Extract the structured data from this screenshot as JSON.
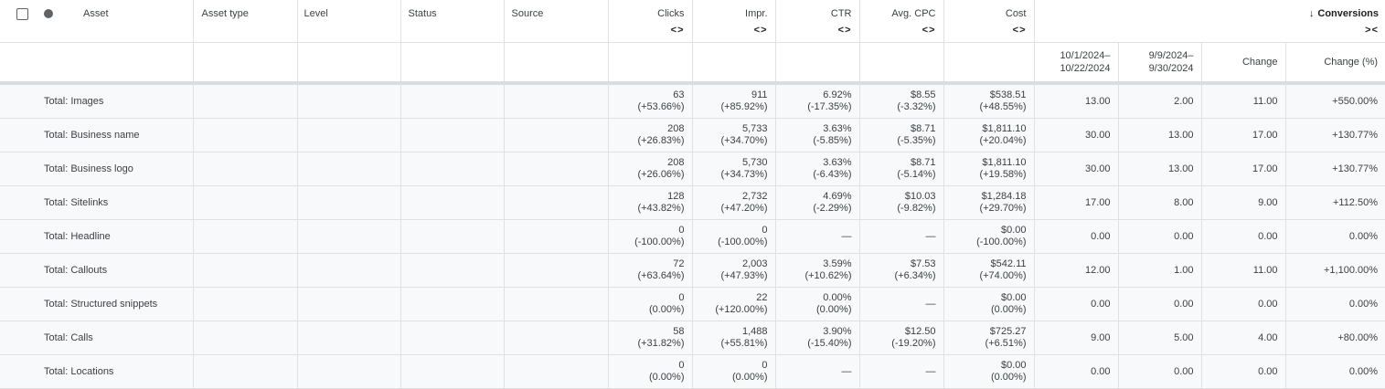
{
  "columns": {
    "asset": "Asset",
    "asset_type": "Asset type",
    "level": "Level",
    "status": "Status",
    "source": "Source",
    "clicks": "Clicks",
    "impr": "Impr.",
    "ctr": "CTR",
    "avg_cpc": "Avg. CPC",
    "cost": "Cost",
    "conversions": "Conversions",
    "conversions_arrow": "↓",
    "expand_icon": "<>",
    "collapse_icon": "><"
  },
  "subheaders": {
    "period1_a": "10/1/2024–",
    "period1_b": "10/22/2024",
    "period2_a": "9/9/2024–",
    "period2_b": "9/30/2024",
    "change": "Change",
    "change_pct": "Change (%)"
  },
  "rows": [
    {
      "asset": "Total: Images",
      "clicks": "63",
      "clicks_d": "(+53.66%)",
      "impr": "911",
      "impr_d": "(+85.92%)",
      "ctr": "6.92%",
      "ctr_d": "(-17.35%)",
      "cpc": "$8.55",
      "cpc_d": "(-3.32%)",
      "cost": "$538.51",
      "cost_d": "(+48.55%)",
      "p1": "13.00",
      "p2": "2.00",
      "chg": "11.00",
      "chgp": "+550.00%"
    },
    {
      "asset": "Total: Business name",
      "clicks": "208",
      "clicks_d": "(+26.83%)",
      "impr": "5,733",
      "impr_d": "(+34.70%)",
      "ctr": "3.63%",
      "ctr_d": "(-5.85%)",
      "cpc": "$8.71",
      "cpc_d": "(-5.35%)",
      "cost": "$1,811.10",
      "cost_d": "(+20.04%)",
      "p1": "30.00",
      "p2": "13.00",
      "chg": "17.00",
      "chgp": "+130.77%"
    },
    {
      "asset": "Total: Business logo",
      "clicks": "208",
      "clicks_d": "(+26.06%)",
      "impr": "5,730",
      "impr_d": "(+34.73%)",
      "ctr": "3.63%",
      "ctr_d": "(-6.43%)",
      "cpc": "$8.71",
      "cpc_d": "(-5.14%)",
      "cost": "$1,811.10",
      "cost_d": "(+19.58%)",
      "p1": "30.00",
      "p2": "13.00",
      "chg": "17.00",
      "chgp": "+130.77%"
    },
    {
      "asset": "Total: Sitelinks",
      "clicks": "128",
      "clicks_d": "(+43.82%)",
      "impr": "2,732",
      "impr_d": "(+47.20%)",
      "ctr": "4.69%",
      "ctr_d": "(-2.29%)",
      "cpc": "$10.03",
      "cpc_d": "(-9.82%)",
      "cost": "$1,284.18",
      "cost_d": "(+29.70%)",
      "p1": "17.00",
      "p2": "8.00",
      "chg": "9.00",
      "chgp": "+112.50%"
    },
    {
      "asset": "Total: Headline",
      "clicks": "0",
      "clicks_d": "(-100.00%)",
      "impr": "0",
      "impr_d": "(-100.00%)",
      "ctr": "—",
      "ctr_d": "",
      "cpc": "—",
      "cpc_d": "",
      "cost": "$0.00",
      "cost_d": "(-100.00%)",
      "p1": "0.00",
      "p2": "0.00",
      "chg": "0.00",
      "chgp": "0.00%"
    },
    {
      "asset": "Total: Callouts",
      "clicks": "72",
      "clicks_d": "(+63.64%)",
      "impr": "2,003",
      "impr_d": "(+47.93%)",
      "ctr": "3.59%",
      "ctr_d": "(+10.62%)",
      "cpc": "$7.53",
      "cpc_d": "(+6.34%)",
      "cost": "$542.11",
      "cost_d": "(+74.00%)",
      "p1": "12.00",
      "p2": "1.00",
      "chg": "11.00",
      "chgp": "+1,100.00%"
    },
    {
      "asset": "Total: Structured snippets",
      "clicks": "0",
      "clicks_d": "(0.00%)",
      "impr": "22",
      "impr_d": "(+120.00%)",
      "ctr": "0.00%",
      "ctr_d": "(0.00%)",
      "cpc": "—",
      "cpc_d": "",
      "cost": "$0.00",
      "cost_d": "(0.00%)",
      "p1": "0.00",
      "p2": "0.00",
      "chg": "0.00",
      "chgp": "0.00%"
    },
    {
      "asset": "Total: Calls",
      "clicks": "58",
      "clicks_d": "(+31.82%)",
      "impr": "1,488",
      "impr_d": "(+55.81%)",
      "ctr": "3.90%",
      "ctr_d": "(-15.40%)",
      "cpc": "$12.50",
      "cpc_d": "(-19.20%)",
      "cost": "$725.27",
      "cost_d": "(+6.51%)",
      "p1": "9.00",
      "p2": "5.00",
      "chg": "4.00",
      "chgp": "+80.00%"
    },
    {
      "asset": "Total: Locations",
      "clicks": "0",
      "clicks_d": "(0.00%)",
      "impr": "0",
      "impr_d": "(0.00%)",
      "ctr": "—",
      "ctr_d": "",
      "cpc": "—",
      "cpc_d": "",
      "cost": "$0.00",
      "cost_d": "(0.00%)",
      "p1": "0.00",
      "p2": "0.00",
      "chg": "0.00",
      "chgp": "0.00%"
    }
  ]
}
